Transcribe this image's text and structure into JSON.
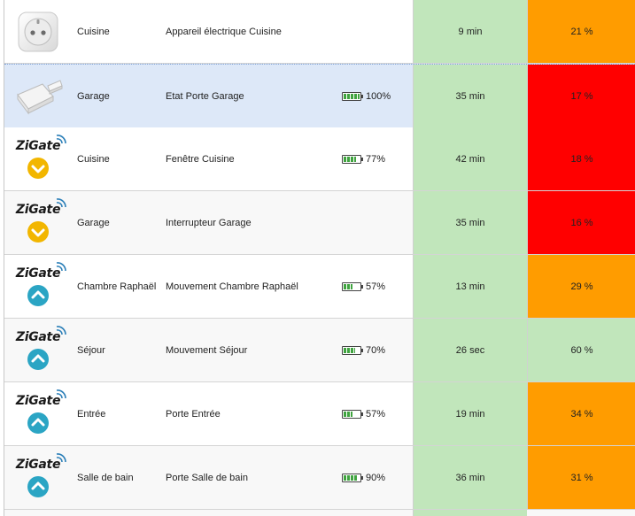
{
  "rows": [
    {
      "image": "plug",
      "room": "Cuisine",
      "name": "Appareil électrique Cuisine",
      "battery": "",
      "battery_fill": null,
      "time": "9 min",
      "signal": "21 %",
      "signal_color": "orange",
      "alt": false,
      "selected": false
    },
    {
      "image": "sensor",
      "room": "Garage",
      "name": "Etat Porte Garage",
      "battery": "100%",
      "battery_fill": 1.0,
      "time": "35 min",
      "signal": "17 %",
      "signal_color": "red",
      "alt": false,
      "selected": true
    },
    {
      "image": "zigate-down",
      "room": "Cuisine",
      "name": "Fenêtre Cuisine",
      "battery": "77%",
      "battery_fill": 0.77,
      "time": "42 min",
      "signal": "18 %",
      "signal_color": "red",
      "alt": false,
      "selected": false
    },
    {
      "image": "zigate-down",
      "room": "Garage",
      "name": "Interrupteur Garage",
      "battery": "",
      "battery_fill": null,
      "time": "35 min",
      "signal": "16 %",
      "signal_color": "red",
      "alt": true,
      "selected": false
    },
    {
      "image": "zigate-up",
      "room": "Chambre Raphaël",
      "name": "Mouvement Chambre Raphaël",
      "battery": "57%",
      "battery_fill": 0.57,
      "time": "13 min",
      "signal": "29 %",
      "signal_color": "orange",
      "alt": false,
      "selected": false
    },
    {
      "image": "zigate-up",
      "room": "Séjour",
      "name": "Mouvement Séjour",
      "battery": "70%",
      "battery_fill": 0.7,
      "time": "26 sec",
      "signal": "60 %",
      "signal_color": "green",
      "alt": true,
      "selected": false
    },
    {
      "image": "zigate-up",
      "room": "Entrée",
      "name": "Porte Entrée",
      "battery": "57%",
      "battery_fill": 0.57,
      "time": "19 min",
      "signal": "34 %",
      "signal_color": "orange",
      "alt": false,
      "selected": false
    },
    {
      "image": "zigate-up",
      "room": "Salle de bain",
      "name": "Porte Salle de bain",
      "battery": "90%",
      "battery_fill": 0.9,
      "time": "36 min",
      "signal": "31 %",
      "signal_color": "orange",
      "alt": true,
      "selected": false
    }
  ],
  "zigate_text": "ZiGate",
  "colors": {
    "time_bg": "#c1e6bb",
    "orange": "#ff9c00",
    "red": "#ff0000",
    "green": "#c1e6bb",
    "badge_up": "#2ba5c4",
    "badge_down": "#f2b600"
  }
}
